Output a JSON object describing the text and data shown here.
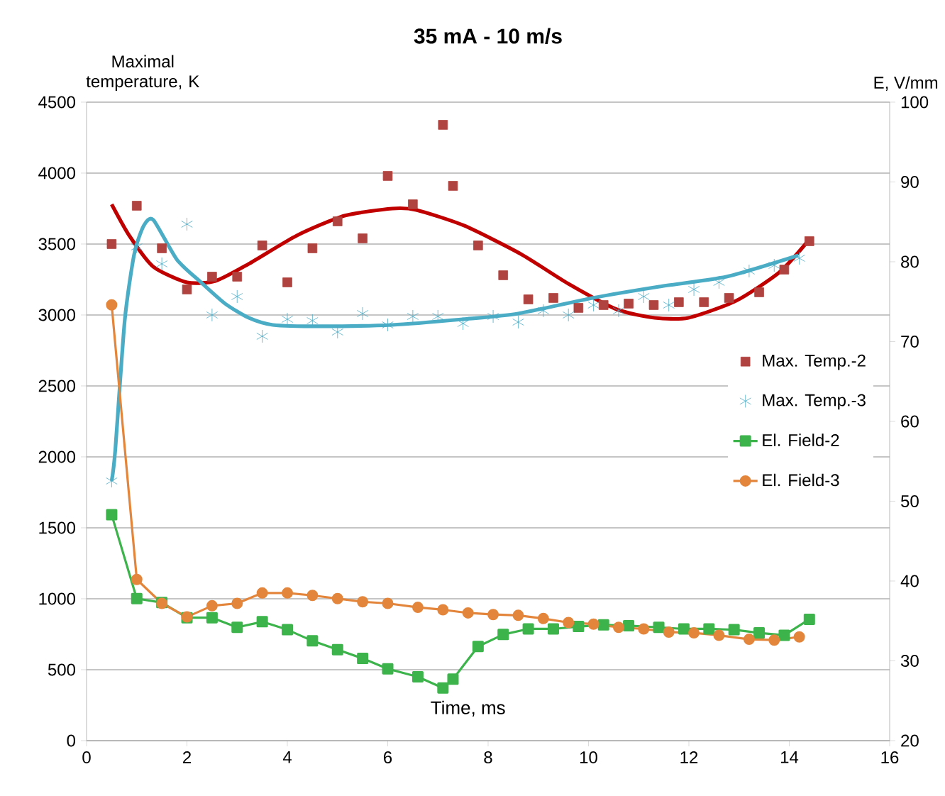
{
  "chart_data": {
    "type": "scatter",
    "title": "35 mA - 10 m/s",
    "xlabel": "Time, ms",
    "ylabel": "Maximal temperature, K",
    "y2label": "E, V/mm",
    "xlim": [
      0,
      16
    ],
    "xticks": [
      0,
      2,
      4,
      6,
      8,
      10,
      12,
      14,
      16
    ],
    "ylim": [
      0,
      4500
    ],
    "yticks": [
      0,
      500,
      1000,
      1500,
      2000,
      2500,
      3000,
      3500,
      4000,
      4500
    ],
    "y2lim": [
      20,
      100
    ],
    "y2ticks": [
      20,
      30,
      40,
      50,
      60,
      70,
      80,
      90,
      100
    ],
    "grid": "y",
    "legend": "right",
    "series": [
      {
        "name": "Max. Temp.-2",
        "marker": "square",
        "color": "#b0433f",
        "x": [
          0.5,
          1.0,
          1.5,
          2.0,
          2.5,
          3.0,
          3.5,
          4.0,
          4.5,
          5.0,
          5.5,
          6.0,
          6.5,
          7.1,
          7.3,
          7.8,
          8.3,
          8.8,
          9.3,
          9.8,
          10.3,
          10.8,
          11.3,
          11.8,
          12.3,
          12.8,
          13.4,
          13.9,
          14.4
        ],
        "values": [
          3500,
          3770,
          3470,
          3180,
          3270,
          3270,
          3490,
          3230,
          3470,
          3660,
          3540,
          3980,
          3780,
          4340,
          3910,
          3490,
          3280,
          3110,
          3120,
          3050,
          3070,
          3080,
          3070,
          3090,
          3090,
          3120,
          3160,
          3320,
          3520
        ]
      },
      {
        "name": "Max. Temp.-3",
        "marker": "cross",
        "color": "#4bacc6",
        "x": [
          0.5,
          1.0,
          1.5,
          2.0,
          2.5,
          3.0,
          3.5,
          4.0,
          4.5,
          5.0,
          5.5,
          6.0,
          6.5,
          7.0,
          7.5,
          8.1,
          8.6,
          9.1,
          9.6,
          10.1,
          10.6,
          11.1,
          11.6,
          12.1,
          12.6,
          13.2,
          13.7,
          14.2
        ],
        "values": [
          1830,
          3480,
          3360,
          3640,
          3000,
          3130,
          2850,
          2970,
          2960,
          2880,
          3010,
          2930,
          2990,
          2990,
          2940,
          2990,
          2950,
          3030,
          3000,
          3070,
          3030,
          3130,
          3070,
          3180,
          3230,
          3310,
          3350,
          3400
        ]
      },
      {
        "type": "line",
        "marker": "none",
        "color": "#c00000",
        "x": [
          0.5,
          0.85,
          1.33,
          2.0,
          2.57,
          3.23,
          4.19,
          5.14,
          6.09,
          6.57,
          7.52,
          8.65,
          9.6,
          10.56,
          11.32,
          11.99,
          12.94,
          13.8,
          14.37
        ],
        "values": [
          3780,
          3560,
          3340,
          3230,
          3240,
          3360,
          3560,
          3700,
          3750,
          3740,
          3630,
          3430,
          3220,
          3040,
          2980,
          2980,
          3100,
          3300,
          3520
        ]
      },
      {
        "type": "line",
        "marker": "none",
        "color": "#4bacc6",
        "x": [
          0.5,
          0.57,
          0.76,
          0.95,
          1.14,
          1.33,
          1.8,
          2.28,
          2.76,
          3.23,
          3.71,
          4.66,
          6.09,
          7.5,
          8.6,
          10.08,
          11.41,
          12.75,
          14.18
        ],
        "values": [
          1830,
          2040,
          2960,
          3430,
          3630,
          3670,
          3390,
          3230,
          3080,
          2980,
          2930,
          2920,
          2930,
          2970,
          3010,
          3120,
          3200,
          3270,
          3420
        ]
      },
      {
        "name": "El. Field-2",
        "type": "line",
        "marker": "square",
        "color": "#3cb44b",
        "axis": "y2",
        "x": [
          0.5,
          1.0,
          1.5,
          2.0,
          2.5,
          3.0,
          3.5,
          4.0,
          4.5,
          5.0,
          5.5,
          6.0,
          6.6,
          7.1,
          7.3,
          7.8,
          8.3,
          8.8,
          9.3,
          9.8,
          10.3,
          10.8,
          11.4,
          11.9,
          12.4,
          12.9,
          13.4,
          13.9,
          14.4
        ],
        "values": [
          48.3,
          37.8,
          37.3,
          35.4,
          35.4,
          34.2,
          34.9,
          33.9,
          32.5,
          31.4,
          30.3,
          29.0,
          28.0,
          26.6,
          27.7,
          31.8,
          33.3,
          34.0,
          34.0,
          34.3,
          34.5,
          34.4,
          34.2,
          34.0,
          34.0,
          33.9,
          33.5,
          33.2,
          35.2
        ]
      },
      {
        "name": "El. Field-3",
        "type": "line",
        "marker": "circle",
        "color": "#e3863c",
        "axis": "y2",
        "x": [
          0.5,
          1.0,
          1.5,
          2.0,
          2.5,
          3.0,
          3.5,
          4.0,
          4.5,
          5.0,
          5.5,
          6.0,
          6.6,
          7.1,
          7.6,
          8.1,
          8.6,
          9.1,
          9.6,
          10.1,
          10.6,
          11.1,
          11.6,
          12.1,
          12.6,
          13.2,
          13.7,
          14.2
        ],
        "values": [
          74.6,
          40.2,
          37.2,
          35.5,
          36.9,
          37.2,
          38.5,
          38.5,
          38.2,
          37.8,
          37.4,
          37.2,
          36.7,
          36.4,
          36.0,
          35.8,
          35.7,
          35.3,
          34.8,
          34.6,
          34.2,
          34.0,
          33.6,
          33.5,
          33.2,
          32.7,
          32.6,
          33.0
        ]
      }
    ]
  }
}
